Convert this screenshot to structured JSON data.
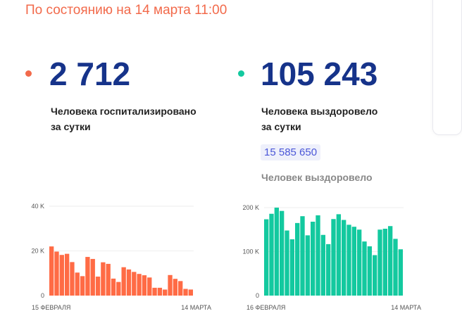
{
  "title": "По состоянию на 14 марта 11:00",
  "hospitalized": {
    "value": "2 712",
    "label_line1": "Человека госпитализировано",
    "label_line2": "за сутки",
    "color": "#f26a4b"
  },
  "recovered": {
    "value": "105 243",
    "label_line1": "Человека выздоровело",
    "label_line2": "за сутки",
    "total": "15 585 650",
    "total_label": "Человек выздоровело",
    "color": "#13c99f"
  },
  "chart_data": [
    {
      "type": "bar",
      "title": "Госпитализировано",
      "x_start": "15 ФЕВРАЛЯ",
      "x_end": "14 МАРТА",
      "yticks": [
        "0",
        "20 K",
        "40 K"
      ],
      "ylim": [
        0,
        40000
      ],
      "color": "#ff6b45",
      "values": [
        22000,
        19700,
        18200,
        18700,
        15000,
        10300,
        8700,
        17300,
        16400,
        8500,
        14900,
        14200,
        7600,
        6100,
        12700,
        11700,
        10600,
        9700,
        9100,
        8100,
        3500,
        3500,
        2700,
        9200,
        7500,
        6500,
        3000,
        2712
      ]
    },
    {
      "type": "bar",
      "title": "Выздоровело",
      "x_start": "16 ФЕВРАЛЯ",
      "x_end": "14 МАРТА",
      "yticks": [
        "0",
        "100 K",
        "200 K"
      ],
      "ylim": [
        0,
        200000
      ],
      "color": "#13c99f",
      "values": [
        173500,
        186000,
        200000,
        192500,
        148000,
        128000,
        165000,
        180500,
        137000,
        168000,
        182500,
        138000,
        117000,
        174000,
        185000,
        172000,
        161000,
        156500,
        150000,
        123000,
        112000,
        92000,
        150000,
        152000,
        158000,
        129000,
        105243
      ]
    }
  ]
}
